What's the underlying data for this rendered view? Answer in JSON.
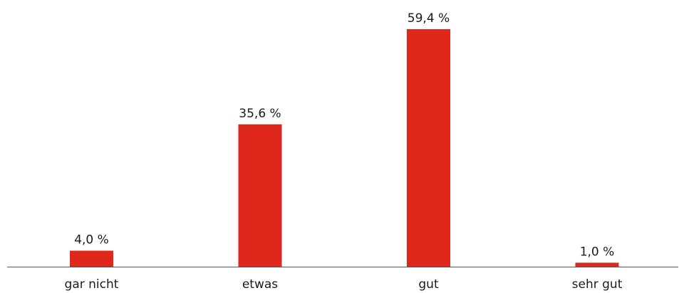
{
  "chart_data": {
    "type": "bar",
    "categories": [
      "gar nicht",
      "etwas",
      "gut",
      "sehr gut"
    ],
    "values": [
      4.0,
      35.6,
      59.4,
      1.0
    ],
    "value_labels": [
      "4,0 %",
      "35,6 %",
      "59,4 %",
      "1,0 %"
    ],
    "title": "",
    "xlabel": "",
    "ylabel": "",
    "ylim": [
      0,
      59.4
    ],
    "grid": false,
    "legend": "none",
    "bar_color": "#e0271c",
    "axis_color": "#555555"
  }
}
